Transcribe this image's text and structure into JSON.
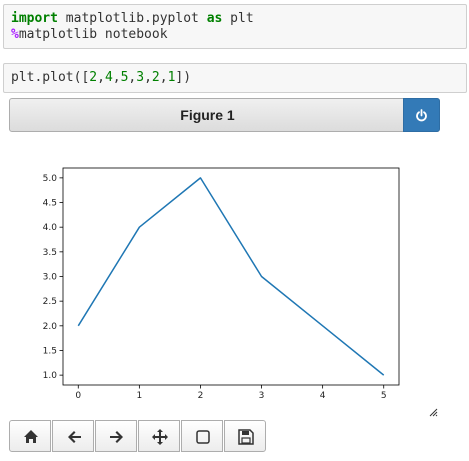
{
  "cells": [
    {
      "lines": [
        [
          {
            "t": "import",
            "c": "kw"
          },
          {
            "t": " matplotlib.pyplot ",
            "c": "plain"
          },
          {
            "t": "as",
            "c": "kw"
          },
          {
            "t": " plt",
            "c": "plain"
          }
        ],
        [
          {
            "t": "%",
            "c": "magic"
          },
          {
            "t": "matplotlib notebook",
            "c": "plain"
          }
        ]
      ]
    },
    {
      "lines": [
        [
          {
            "t": "plt.plot(",
            "c": "plain"
          },
          {
            "t": "[",
            "c": "plain"
          },
          {
            "t": "2",
            "c": "num"
          },
          {
            "t": ",",
            "c": "plain"
          },
          {
            "t": "4",
            "c": "num"
          },
          {
            "t": ",",
            "c": "plain"
          },
          {
            "t": "5",
            "c": "num"
          },
          {
            "t": ",",
            "c": "plain"
          },
          {
            "t": "3",
            "c": "num"
          },
          {
            "t": ",",
            "c": "plain"
          },
          {
            "t": "2",
            "c": "num"
          },
          {
            "t": ",",
            "c": "plain"
          },
          {
            "t": "1",
            "c": "num"
          },
          {
            "t": "])",
            "c": "plain"
          }
        ]
      ]
    }
  ],
  "figure": {
    "title": "Figure 1",
    "close_icon": "power-icon"
  },
  "chart_data": {
    "type": "line",
    "x": [
      0,
      1,
      2,
      3,
      4,
      5
    ],
    "series": [
      {
        "values": [
          2,
          4,
          5,
          3,
          2,
          1
        ],
        "color": "#1f77b4"
      }
    ],
    "xticks": [
      "0",
      "1",
      "2",
      "3",
      "4",
      "5"
    ],
    "yticks": [
      "1.0",
      "1.5",
      "2.0",
      "2.5",
      "3.0",
      "3.5",
      "4.0",
      "4.5",
      "5.0"
    ],
    "xlim": [
      -0.25,
      5.25
    ],
    "ylim": [
      0.8,
      5.2
    ],
    "grid": false,
    "title": "",
    "xlabel": "",
    "ylabel": ""
  },
  "toolbar": [
    {
      "name": "home-button",
      "icon": "home-icon"
    },
    {
      "name": "back-button",
      "icon": "arrow-left-icon"
    },
    {
      "name": "forward-button",
      "icon": "arrow-right-icon"
    },
    {
      "name": "pan-button",
      "icon": "move-icon"
    },
    {
      "name": "zoom-button",
      "icon": "square-icon"
    },
    {
      "name": "save-button",
      "icon": "floppy-icon"
    }
  ]
}
